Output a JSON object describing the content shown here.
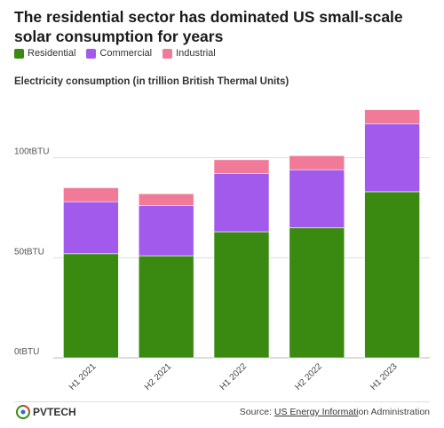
{
  "title": "The residential sector has dominated US small-scale solar consumption for years",
  "legend": [
    {
      "label": "Residential",
      "color": "#3a8a12"
    },
    {
      "label": "Commercial",
      "color": "#a25aed"
    },
    {
      "label": "Industrial",
      "color": "#f07a98"
    }
  ],
  "subtitle": "Electricity consumption (in trillion British Thermal Units)",
  "chart_data": {
    "type": "bar",
    "stacked": true,
    "categories": [
      "H1 2021",
      "H2 2021",
      "H1 2022",
      "H2 2022",
      "H1 2023"
    ],
    "series": [
      {
        "name": "Residential",
        "values": [
          52,
          51,
          63,
          65,
          83
        ],
        "color": "#3a8a12"
      },
      {
        "name": "Commercial",
        "values": [
          26,
          25,
          29,
          29,
          34
        ],
        "color": "#a25aed"
      },
      {
        "name": "Industrial",
        "values": [
          7,
          6,
          7,
          7,
          7
        ],
        "color": "#f07a98"
      }
    ],
    "yticks": [
      0,
      50,
      100
    ],
    "ytick_labels": [
      "0tBTU",
      "50tBTU",
      "100tBTU"
    ],
    "ylim": [
      0,
      130
    ],
    "grid": true,
    "legend_position": "top-left"
  },
  "footer": {
    "logo_text": "PVTECH",
    "source_prefix": "Source: ",
    "source_link": "US Energy Informati",
    "source_rest": "on Administration"
  }
}
